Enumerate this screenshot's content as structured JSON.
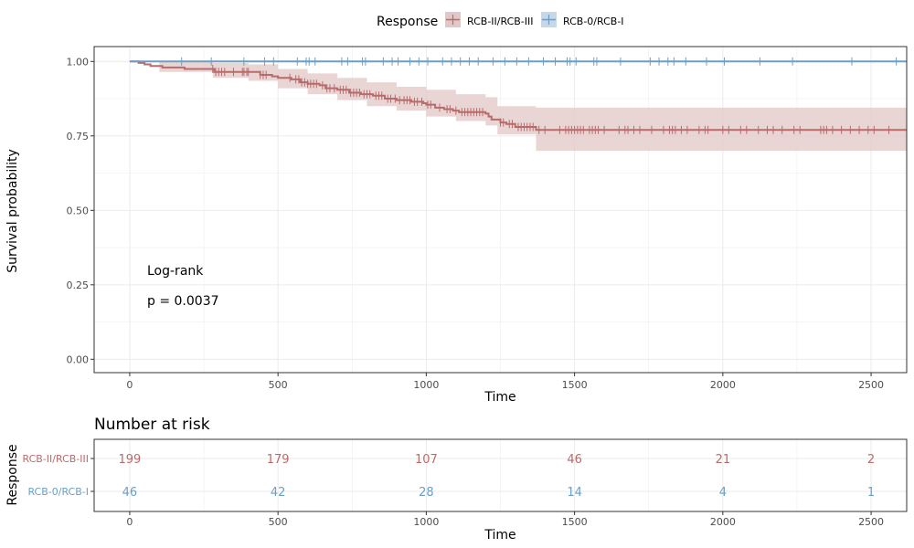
{
  "legend": {
    "title": "Response",
    "items": [
      {
        "label": "RCB-II/RCB-III",
        "color": "#b86b6b",
        "fill": "#e3c7c7"
      },
      {
        "label": "RCB-0/RCB-I",
        "color": "#6a9fc6",
        "fill": "#c6d8e8"
      }
    ],
    "placement": "top"
  },
  "colors": {
    "panel_border": "#333333",
    "grid": "#ebebeb",
    "text": "#000000",
    "tick_text": "#4d4d4d"
  },
  "chart_data": [
    {
      "type": "line",
      "subtype": "kaplan-meier",
      "xlabel": "Time",
      "ylabel": "Survival probability",
      "xlim": [
        -120,
        2620
      ],
      "ylim": [
        -0.045,
        1.05
      ],
      "x_ticks": [
        0,
        500,
        1000,
        1500,
        2000,
        2500
      ],
      "y_ticks": [
        0.0,
        0.25,
        0.5,
        0.75,
        1.0
      ],
      "y_tick_labels": [
        "0.00",
        "0.25",
        "0.50",
        "0.75",
        "1.00"
      ],
      "grid": true,
      "annotation": {
        "line1": "Log-rank",
        "line2": "p = 0.0037",
        "x": 55,
        "y1": 0.3,
        "y2": 0.2
      },
      "series": [
        {
          "name": "RCB-II/RCB-III",
          "step_points": [
            [
              0,
              1.0
            ],
            [
              30,
              0.995
            ],
            [
              50,
              0.99
            ],
            [
              70,
              0.985
            ],
            [
              110,
              0.98
            ],
            [
              180,
              0.98
            ],
            [
              185,
              0.975
            ],
            [
              280,
              0.975
            ],
            [
              285,
              0.965
            ],
            [
              420,
              0.965
            ],
            [
              440,
              0.955
            ],
            [
              480,
              0.95
            ],
            [
              500,
              0.945
            ],
            [
              545,
              0.94
            ],
            [
              575,
              0.93
            ],
            [
              600,
              0.925
            ],
            [
              640,
              0.92
            ],
            [
              660,
              0.91
            ],
            [
              700,
              0.905
            ],
            [
              740,
              0.895
            ],
            [
              780,
              0.89
            ],
            [
              820,
              0.885
            ],
            [
              860,
              0.875
            ],
            [
              900,
              0.87
            ],
            [
              950,
              0.865
            ],
            [
              990,
              0.86
            ],
            [
              1000,
              0.855
            ],
            [
              1030,
              0.845
            ],
            [
              1060,
              0.84
            ],
            [
              1090,
              0.835
            ],
            [
              1110,
              0.83
            ],
            [
              1200,
              0.825
            ],
            [
              1210,
              0.815
            ],
            [
              1220,
              0.805
            ],
            [
              1250,
              0.795
            ],
            [
              1270,
              0.79
            ],
            [
              1300,
              0.78
            ],
            [
              1370,
              0.77
            ],
            [
              2620,
              0.77
            ]
          ],
          "band": [
            [
              0,
              1.0,
              1.0
            ],
            [
              100,
              1.0,
              0.965
            ],
            [
              280,
              0.995,
              0.945
            ],
            [
              400,
              0.99,
              0.935
            ],
            [
              500,
              0.975,
              0.91
            ],
            [
              600,
              0.96,
              0.89
            ],
            [
              700,
              0.945,
              0.87
            ],
            [
              800,
              0.93,
              0.85
            ],
            [
              900,
              0.915,
              0.835
            ],
            [
              1000,
              0.905,
              0.815
            ],
            [
              1100,
              0.89,
              0.8
            ],
            [
              1200,
              0.88,
              0.785
            ],
            [
              1240,
              0.85,
              0.755
            ],
            [
              1370,
              0.845,
              0.7
            ],
            [
              2620,
              0.845,
              0.7
            ]
          ],
          "censor_times": [
            280,
            290,
            300,
            310,
            320,
            350,
            380,
            385,
            395,
            400,
            440,
            450,
            460,
            540,
            560,
            570,
            580,
            590,
            600,
            610,
            620,
            630,
            650,
            665,
            675,
            690,
            710,
            720,
            730,
            745,
            755,
            765,
            775,
            790,
            800,
            810,
            830,
            840,
            850,
            870,
            880,
            895,
            910,
            925,
            935,
            945,
            960,
            970,
            985,
            1005,
            1015,
            1045,
            1070,
            1080,
            1100,
            1120,
            1130,
            1140,
            1150,
            1160,
            1170,
            1180,
            1190,
            1250,
            1260,
            1280,
            1290,
            1310,
            1320,
            1330,
            1340,
            1350,
            1360,
            1380,
            1400,
            1450,
            1470,
            1480,
            1490,
            1500,
            1510,
            1520,
            1530,
            1550,
            1560,
            1570,
            1580,
            1600,
            1650,
            1670,
            1680,
            1700,
            1720,
            1760,
            1800,
            1820,
            1830,
            1840,
            1860,
            1880,
            1920,
            1940,
            1950,
            2000,
            2020,
            2060,
            2080,
            2120,
            2150,
            2170,
            2200,
            2240,
            2260,
            2330,
            2340,
            2350,
            2370,
            2400,
            2430,
            2460,
            2490,
            2510,
            2560
          ]
        },
        {
          "name": "RCB-0/RCB-I",
          "step_points": [
            [
              0,
              1.0
            ],
            [
              2620,
              1.0
            ]
          ],
          "censor_times": [
            175,
            275,
            385,
            455,
            485,
            565,
            595,
            605,
            625,
            715,
            735,
            785,
            795,
            855,
            885,
            905,
            945,
            975,
            1005,
            1055,
            1085,
            1115,
            1145,
            1175,
            1225,
            1265,
            1305,
            1345,
            1395,
            1435,
            1475,
            1485,
            1505,
            1565,
            1575,
            1655,
            1755,
            1785,
            1815,
            1835,
            1875,
            1945,
            2005,
            2125,
            2235,
            2435,
            2585
          ]
        }
      ]
    },
    {
      "type": "table",
      "title": "Number at risk",
      "xlabel": "Time",
      "ylabel": "Response",
      "xlim": [
        -120,
        2620
      ],
      "x_ticks": [
        0,
        500,
        1000,
        1500,
        2000,
        2500
      ],
      "columns": [
        0,
        500,
        1000,
        1500,
        2000,
        2500
      ],
      "rows": [
        {
          "name": "RCB-II/RCB-III",
          "values": [
            199,
            179,
            107,
            46,
            21,
            2
          ]
        },
        {
          "name": "RCB-0/RCB-I",
          "values": [
            46,
            42,
            28,
            14,
            4,
            1
          ]
        }
      ]
    }
  ]
}
